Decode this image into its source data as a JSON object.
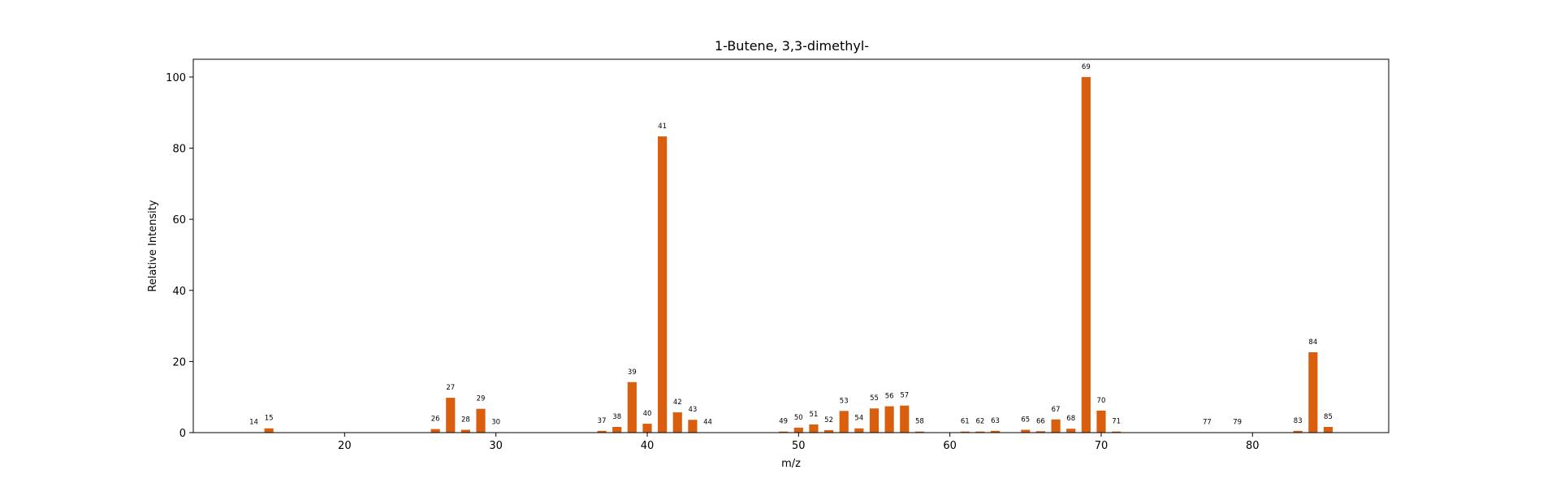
{
  "chart_data": {
    "type": "bar",
    "title": "1-Butene, 3,3-dimethyl-",
    "xlabel": "m/z",
    "ylabel": "Relative Intensity",
    "xlim": [
      10,
      89
    ],
    "ylim": [
      0,
      105
    ],
    "xticks": [
      20,
      30,
      40,
      50,
      60,
      70,
      80
    ],
    "yticks": [
      0,
      20,
      40,
      60,
      80,
      100
    ],
    "grid": false,
    "bar_color": "#d95f0e",
    "peaks": [
      {
        "x": 14,
        "y": 0.1
      },
      {
        "x": 15,
        "y": 1.2
      },
      {
        "x": 26,
        "y": 1.0
      },
      {
        "x": 27,
        "y": 9.8
      },
      {
        "x": 28,
        "y": 0.8
      },
      {
        "x": 29,
        "y": 6.7
      },
      {
        "x": 30,
        "y": 0.1
      },
      {
        "x": 37,
        "y": 0.5
      },
      {
        "x": 38,
        "y": 1.6
      },
      {
        "x": 39,
        "y": 14.2
      },
      {
        "x": 40,
        "y": 2.5
      },
      {
        "x": 41,
        "y": 83.3
      },
      {
        "x": 42,
        "y": 5.7
      },
      {
        "x": 43,
        "y": 3.6
      },
      {
        "x": 44,
        "y": 0.1
      },
      {
        "x": 49,
        "y": 0.3
      },
      {
        "x": 50,
        "y": 1.4
      },
      {
        "x": 51,
        "y": 2.3
      },
      {
        "x": 52,
        "y": 0.7
      },
      {
        "x": 53,
        "y": 6.1
      },
      {
        "x": 54,
        "y": 1.2
      },
      {
        "x": 55,
        "y": 6.8
      },
      {
        "x": 56,
        "y": 7.4
      },
      {
        "x": 57,
        "y": 7.6
      },
      {
        "x": 58,
        "y": 0.3
      },
      {
        "x": 61,
        "y": 0.3
      },
      {
        "x": 62,
        "y": 0.3
      },
      {
        "x": 63,
        "y": 0.5
      },
      {
        "x": 65,
        "y": 0.8
      },
      {
        "x": 66,
        "y": 0.4
      },
      {
        "x": 67,
        "y": 3.7
      },
      {
        "x": 68,
        "y": 1.1
      },
      {
        "x": 69,
        "y": 100
      },
      {
        "x": 70,
        "y": 6.2
      },
      {
        "x": 71,
        "y": 0.3
      },
      {
        "x": 77,
        "y": 0.1
      },
      {
        "x": 79,
        "y": 0.1
      },
      {
        "x": 83,
        "y": 0.5
      },
      {
        "x": 84,
        "y": 22.6
      },
      {
        "x": 85,
        "y": 1.6
      }
    ]
  }
}
